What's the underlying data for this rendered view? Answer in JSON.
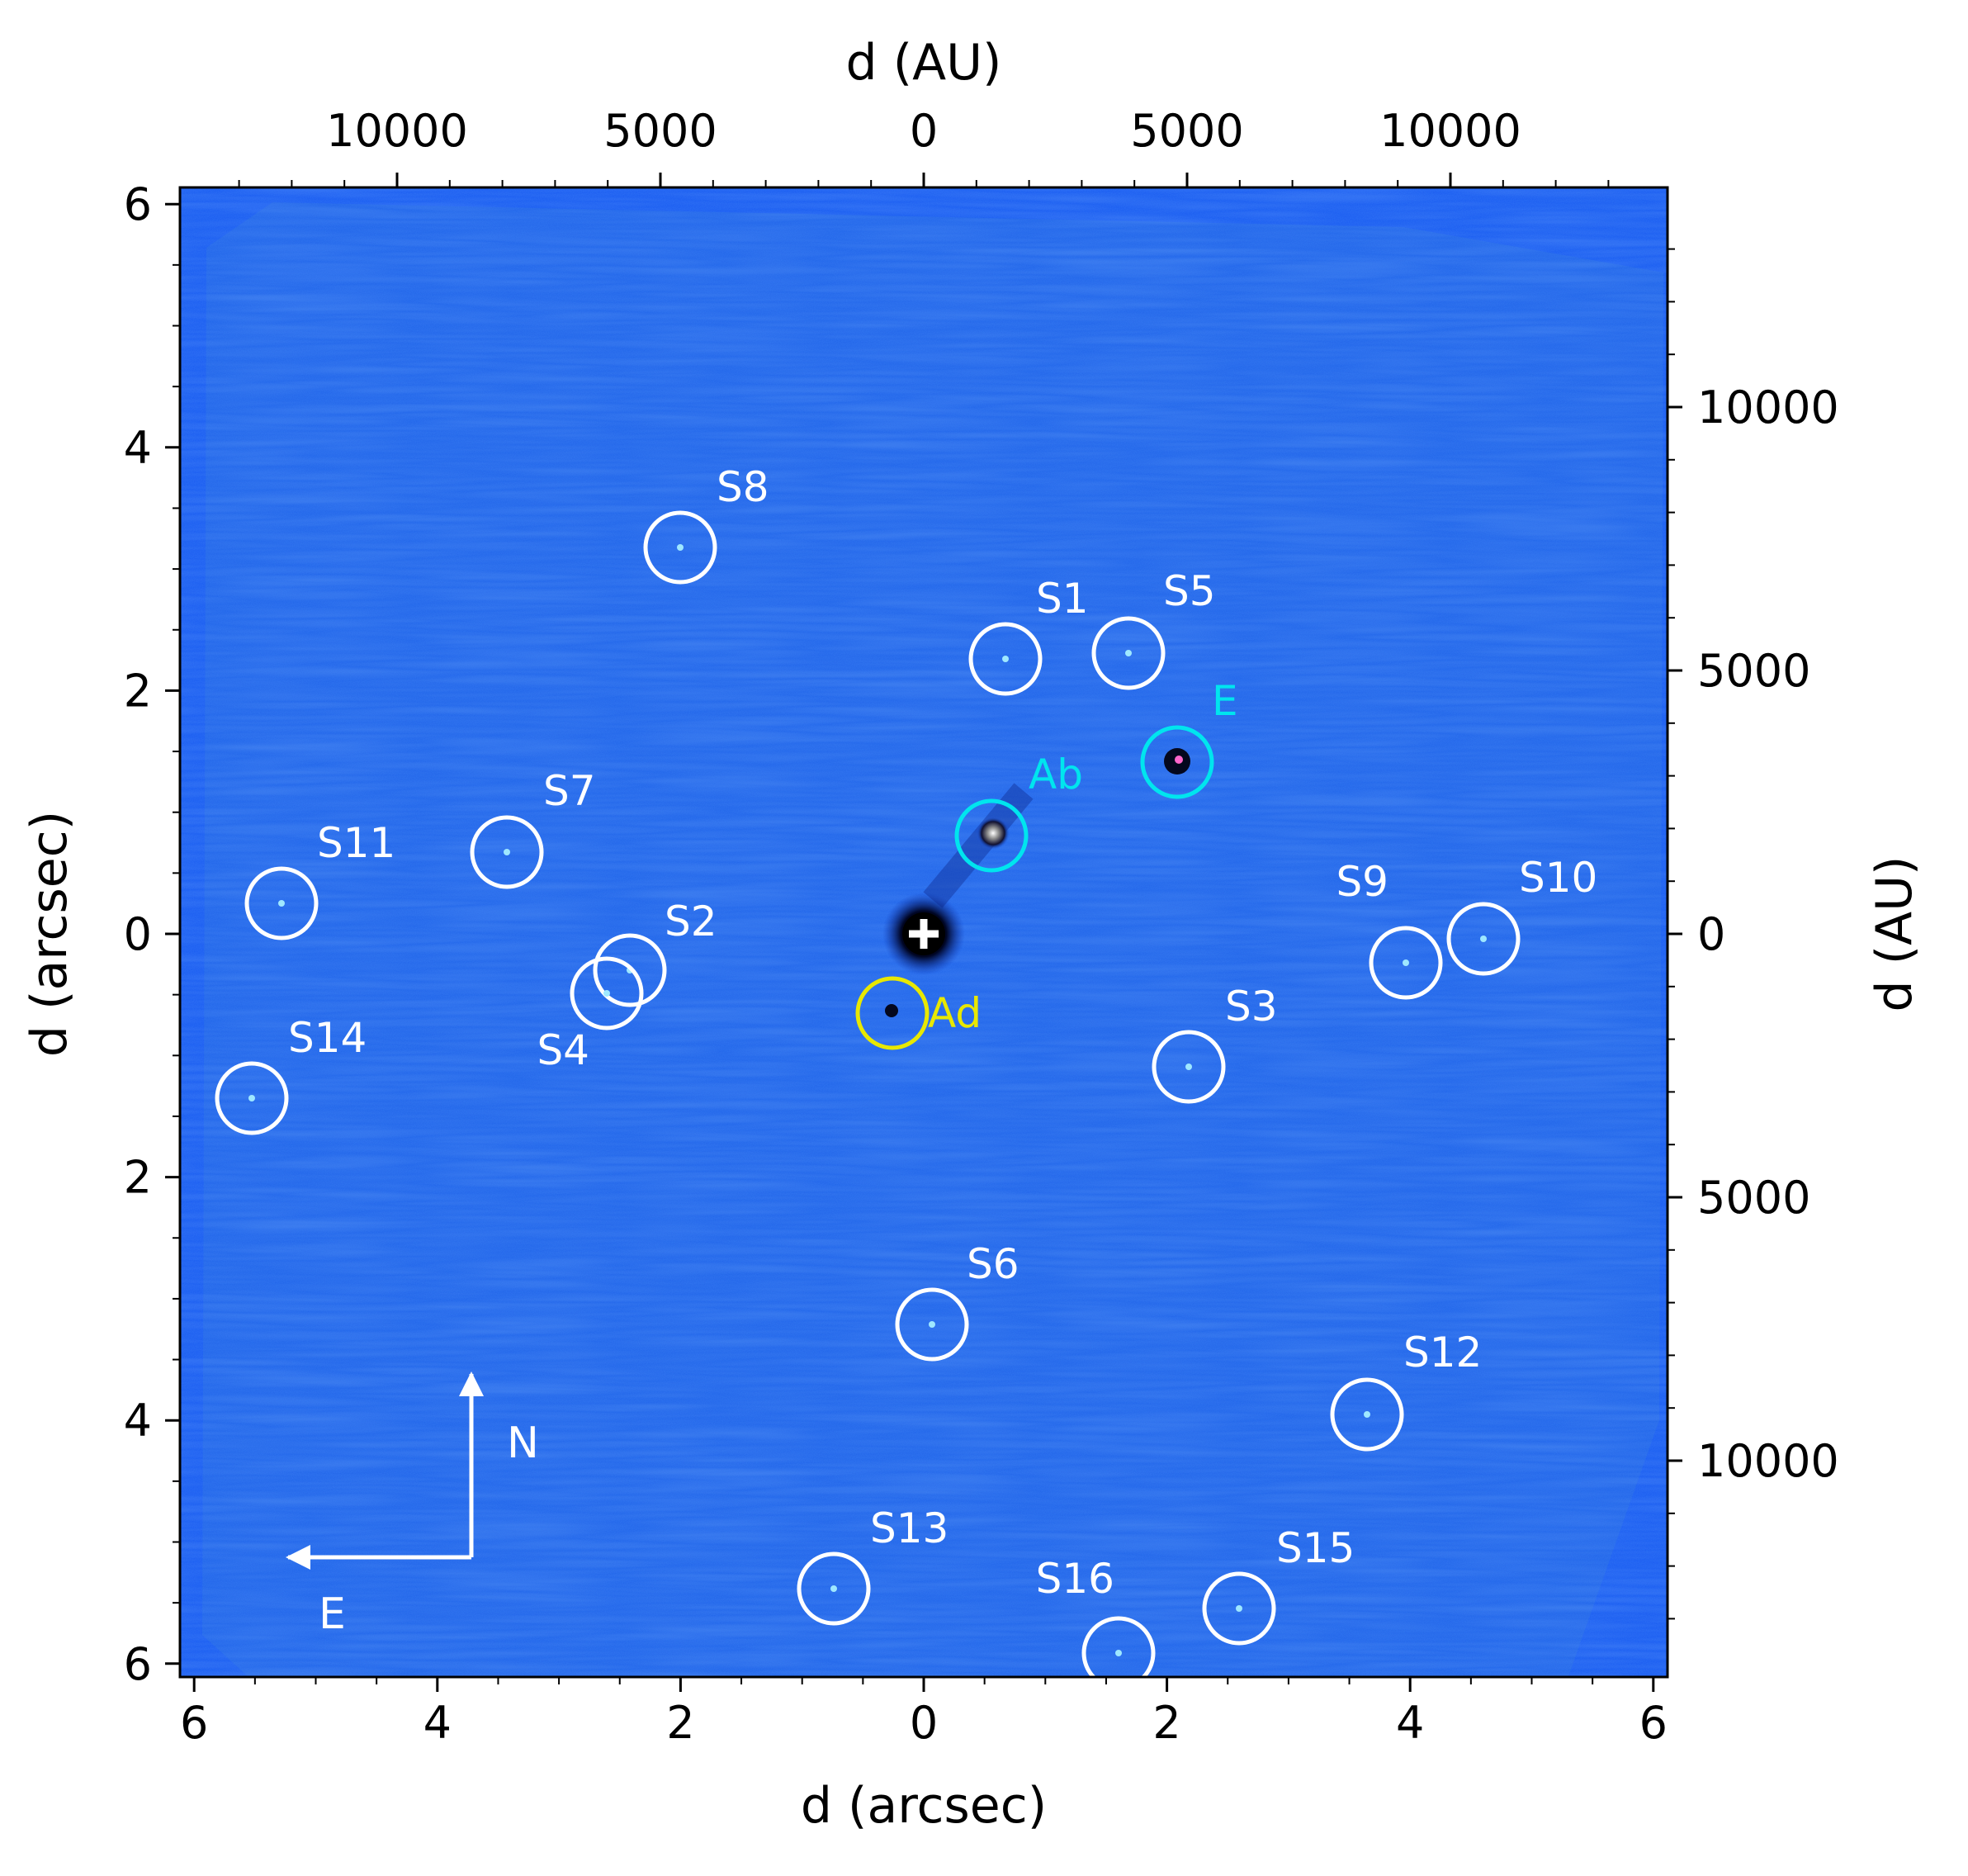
{
  "axes": {
    "bottom_label": "d (arcsec)",
    "left_label": "d (arcsec)",
    "top_label": "d (AU)",
    "right_label": "d (AU)",
    "arcsec_ticks": [
      "6",
      "4",
      "2",
      "0",
      "2",
      "4",
      "6"
    ],
    "au_ticks": [
      "10000",
      "5000",
      "0",
      "5000",
      "10000"
    ]
  },
  "compass": {
    "north": "N",
    "east": "E"
  },
  "colors": {
    "background": "#1a5af0",
    "source_circle": "#ffffff",
    "companion_circle": "#00e5ee",
    "candidate_circle": "#e8e800",
    "frame": "#000000"
  },
  "sources": [
    {
      "label": "S1",
      "kind": "background"
    },
    {
      "label": "S2",
      "kind": "background"
    },
    {
      "label": "S3",
      "kind": "background"
    },
    {
      "label": "S4",
      "kind": "background"
    },
    {
      "label": "S5",
      "kind": "background"
    },
    {
      "label": "S6",
      "kind": "background"
    },
    {
      "label": "S7",
      "kind": "background"
    },
    {
      "label": "S8",
      "kind": "background"
    },
    {
      "label": "S9",
      "kind": "background"
    },
    {
      "label": "S10",
      "kind": "background"
    },
    {
      "label": "S11",
      "kind": "background"
    },
    {
      "label": "S12",
      "kind": "background"
    },
    {
      "label": "S13",
      "kind": "background"
    },
    {
      "label": "S14",
      "kind": "background"
    },
    {
      "label": "S15",
      "kind": "background"
    },
    {
      "label": "S16",
      "kind": "background"
    },
    {
      "label": "Ab",
      "kind": "companion"
    },
    {
      "label": "E",
      "kind": "companion"
    },
    {
      "label": "Ad",
      "kind": "candidate"
    }
  ]
}
